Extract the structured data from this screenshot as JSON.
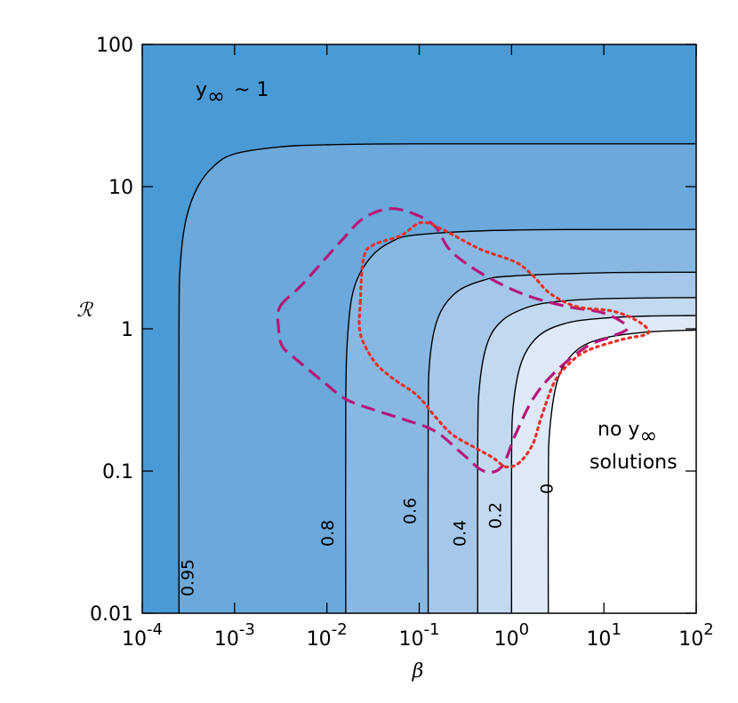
{
  "chart_data": {
    "type": "contour",
    "x_label": "β",
    "y_label": "ℛ",
    "xlog": true,
    "ylog": true,
    "xlim": [
      0.0001,
      100
    ],
    "ylim": [
      0.01,
      100
    ],
    "xticks": [
      {
        "value": 0.0001,
        "label": "10",
        "exponent": "-4"
      },
      {
        "value": 0.001,
        "label": "10",
        "exponent": "-3"
      },
      {
        "value": 0.01,
        "label": "10",
        "exponent": "-2"
      },
      {
        "value": 0.1,
        "label": "10",
        "exponent": "-1"
      },
      {
        "value": 1,
        "label": "10",
        "exponent": "0"
      },
      {
        "value": 10,
        "label": "10",
        "exponent": "1"
      },
      {
        "value": 100,
        "label": "10",
        "exponent": "2"
      }
    ],
    "yticks": [
      0.01,
      0.1,
      1,
      10,
      100
    ],
    "background": "#4a9ad6",
    "line_color": "#000000",
    "annotations": [
      [
        "y",
        "∞",
        "~ 1"
      ],
      [
        "no y",
        "∞"
      ],
      "solutions"
    ],
    "series": [
      {
        "name": "0.95",
        "color": "#6ba8db",
        "x": [
          0.00025,
          0.00025,
          0.00026,
          0.0003,
          0.0004,
          0.0006,
          0.001,
          0.003,
          0.01,
          0.1,
          100
        ],
        "y": [
          0.01,
          1,
          3,
          6,
          10,
          14,
          17,
          19,
          19.7,
          20,
          20
        ]
      },
      {
        "name": "0.8",
        "color": "#88b8e2",
        "x": [
          0.016,
          0.016,
          0.017,
          0.02,
          0.03,
          0.05,
          0.1,
          1,
          100
        ],
        "y": [
          0.01,
          0.3,
          1,
          2,
          3.2,
          4.1,
          4.6,
          4.95,
          5
        ]
      },
      {
        "name": "0.6",
        "color": "#a5c8ea",
        "x": [
          0.125,
          0.125,
          0.13,
          0.16,
          0.25,
          0.5,
          1,
          10,
          100
        ],
        "y": [
          0.01,
          0.2,
          0.6,
          1.2,
          1.8,
          2.2,
          2.35,
          2.48,
          2.5
        ]
      },
      {
        "name": "0.4",
        "color": "#c2d9f0",
        "x": [
          0.43,
          0.43,
          0.45,
          0.55,
          0.8,
          1.5,
          3,
          10,
          100
        ],
        "y": [
          0.01,
          0.15,
          0.4,
          0.8,
          1.15,
          1.42,
          1.55,
          1.63,
          1.66
        ]
      },
      {
        "name": "0.2",
        "color": "#dfe9f7",
        "x": [
          1,
          1,
          1.05,
          1.3,
          2,
          4,
          10,
          30,
          100
        ],
        "y": [
          0.01,
          0.12,
          0.3,
          0.6,
          0.9,
          1.1,
          1.19,
          1.23,
          1.24
        ]
      },
      {
        "name": "0",
        "color": "#ffffff",
        "x": [
          2.5,
          2.5,
          2.6,
          3.2,
          5,
          10,
          30,
          100
        ],
        "y": [
          0.01,
          0.08,
          0.2,
          0.45,
          0.7,
          0.86,
          0.95,
          0.98
        ]
      }
    ],
    "regions": [
      {
        "style": "dashed",
        "color": "#b5177a",
        "x": [
          0.0031,
          0.0054,
          0.0145,
          0.025,
          0.049,
          0.095,
          0.15,
          0.21,
          0.36,
          0.78,
          1.7,
          4.1,
          10,
          18,
          12.6,
          6.5,
          2.9,
          1.7,
          1.1,
          0.78,
          0.5,
          0.29,
          0.15,
          0.069,
          0.032,
          0.016,
          0.0093,
          0.0048,
          0.0033,
          0.003
        ],
        "y": [
          1.43,
          2.05,
          4.2,
          6.0,
          7.0,
          6.3,
          5.2,
          3.65,
          2.74,
          2.05,
          1.66,
          1.43,
          1.29,
          1.03,
          0.89,
          0.75,
          0.49,
          0.32,
          0.18,
          0.107,
          0.1,
          0.133,
          0.19,
          0.23,
          0.27,
          0.32,
          0.42,
          0.6,
          0.75,
          1.0
        ]
      },
      {
        "style": "dotted",
        "color": "#e8302a",
        "x": [
          0.023,
          0.025,
          0.032,
          0.062,
          0.107,
          0.19,
          0.45,
          1.1,
          1.7,
          2.6,
          5.1,
          12.6,
          24,
          30,
          15.5,
          6.5,
          4.1,
          2.9,
          2.1,
          1.7,
          1.22,
          0.87,
          0.63,
          0.41,
          0.23,
          0.15,
          0.095,
          0.049,
          0.032,
          0.023
        ],
        "y": [
          1.54,
          3.16,
          3.9,
          4.5,
          5.6,
          4.9,
          3.65,
          2.95,
          2.37,
          1.78,
          1.43,
          1.33,
          1.12,
          0.93,
          0.84,
          0.7,
          0.56,
          0.42,
          0.24,
          0.155,
          0.115,
          0.107,
          0.124,
          0.145,
          0.18,
          0.24,
          0.34,
          0.46,
          0.6,
          0.93
        ]
      }
    ]
  }
}
